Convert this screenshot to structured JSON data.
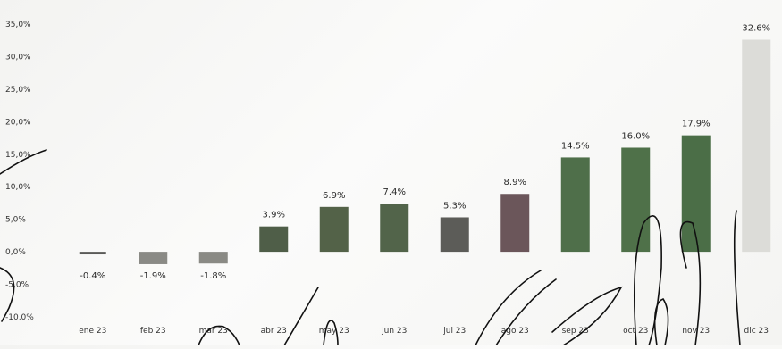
{
  "chart_data": {
    "type": "bar",
    "title": "",
    "xlabel": "",
    "ylabel": "",
    "ylim": [
      -10,
      35
    ],
    "y_ticks": [
      "35,0%",
      "30,0%",
      "25,0%",
      "20,0%",
      "15,0%",
      "10,0%",
      "5,0%",
      "0,0%",
      "-5,0%",
      "-10,0%"
    ],
    "y_tick_values": [
      35,
      30,
      25,
      20,
      15,
      10,
      5,
      0,
      -5,
      -10
    ],
    "categories": [
      "ene 23",
      "feb 23",
      "mar 23",
      "abr 23",
      "may 23",
      "jun 23",
      "jul 23",
      "ago 23",
      "sep 23",
      "oct 23",
      "nov 23",
      "dic 23"
    ],
    "values": [
      -0.4,
      -1.9,
      -1.8,
      3.9,
      6.9,
      7.4,
      5.3,
      8.9,
      14.5,
      16.0,
      17.9,
      32.6
    ],
    "data_labels": [
      "-0.4%",
      "-1.9%",
      "-1.8%",
      "3.9%",
      "6.9%",
      "7.4%",
      "5.3%",
      "8.9%",
      "14.5%",
      "16.0%",
      "17.9%",
      "32.6%"
    ],
    "colors": {
      "negative": "#8a8a85",
      "ene": "#5a5a58",
      "abr": "#4f5e48",
      "may": "#536248",
      "jun": "#52644a",
      "jul": "#5c5c58",
      "ago": "#6b565a",
      "sep": "#4f6f4a",
      "oct": "#4f7149",
      "nov": "#4b6e47",
      "dic": "#dcdcd8"
    },
    "grid": false,
    "legend": "none"
  }
}
